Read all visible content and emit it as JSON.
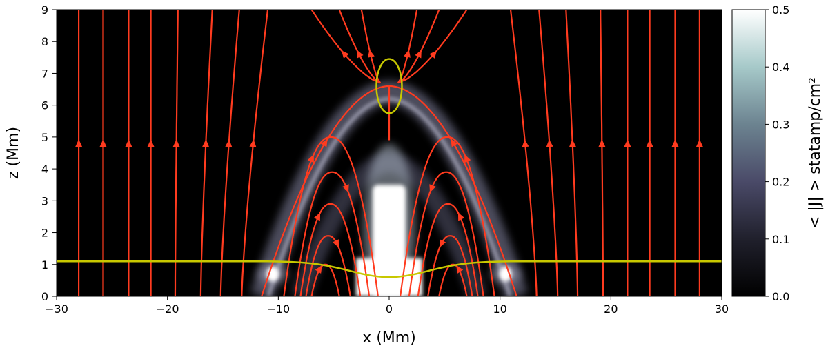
{
  "chart_data": {
    "type": "heatmap",
    "xlabel": "x (Mm)",
    "ylabel": "z (Mm)",
    "xlim": [
      -30,
      30
    ],
    "ylim": [
      0,
      9
    ],
    "xticks": [
      "-30",
      "-20",
      "-10",
      "0",
      "10",
      "20",
      "30"
    ],
    "yticks": [
      "0",
      "1",
      "2",
      "3",
      "4",
      "5",
      "6",
      "7",
      "8",
      "9"
    ],
    "colorbar": {
      "label": "< |J| > statamp/cm²",
      "range": [
        0.0,
        0.5
      ],
      "ticks": [
        "0.0",
        "0.1",
        "0.2",
        "0.3",
        "0.4",
        "0.5"
      ],
      "colormap": "bone"
    },
    "current_features": {
      "central_column": {
        "x": [
          -1.5,
          1.5
        ],
        "z": [
          0,
          3.5
        ],
        "value": 0.5
      },
      "footpoint_blobs": [
        {
          "x": -10.5,
          "z": 0.7,
          "value": 0.5
        },
        {
          "x": 10.5,
          "z": 0.7,
          "value": 0.5
        }
      ],
      "arch_sheet": {
        "foot_x": 11.5,
        "apex_z": 6.4,
        "value": 0.25
      }
    },
    "streamline_color": "#ff3b1f",
    "outer_field_lines_x": [
      -28,
      -25.8,
      -23.5,
      -21.5,
      -19.3,
      -17,
      -15.2,
      -13.3,
      13.3,
      15.2,
      17,
      19.3,
      21.5,
      23.5,
      25.8,
      28
    ],
    "arch_loops": [
      {
        "x_out": 11.5,
        "x_in": 0.0,
        "apex_z": 6.6
      },
      {
        "x_out": 9.5,
        "x_in": 1.0,
        "apex_z": 5.0
      },
      {
        "x_out": 8.5,
        "x_in": 1.8,
        "apex_z": 3.9
      },
      {
        "x_out": 8.0,
        "x_in": 2.6,
        "apex_z": 2.9
      },
      {
        "x_out": 7.5,
        "x_in": 3.5,
        "apex_z": 1.9
      },
      {
        "x_out": 7.0,
        "x_in": 4.5,
        "apex_z": 1.0
      }
    ],
    "null_point": {
      "x": 0,
      "z": 6.6,
      "marker_color": "#c8c800"
    },
    "yellow_contour": {
      "color": "#c8c800",
      "far_z": 1.1,
      "center_z": 0.6,
      "width": 7
    }
  }
}
